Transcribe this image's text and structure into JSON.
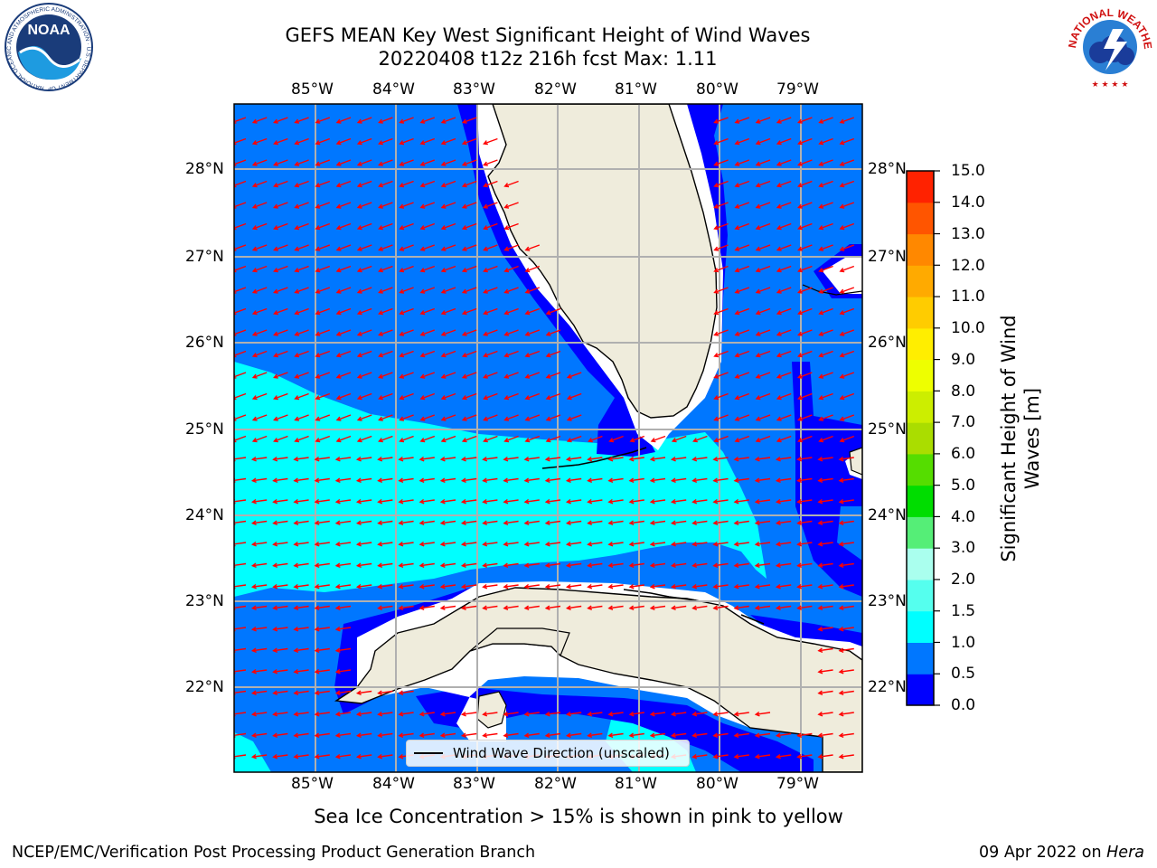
{
  "title": {
    "line1": "GEFS MEAN Key West Significant Height of Wind Waves",
    "line2": "20220408 t12z 216h fcst   Max: 1.11"
  },
  "logos": {
    "left": {
      "name": "noaa-logo",
      "text": "NOAA",
      "ring_text": "NATIONAL OCEANIC AND ATMOSPHERIC ADMINISTRATION · U.S. DEPARTMENT OF COMMERCE"
    },
    "right": {
      "name": "nws-logo",
      "ring_text": "NATIONAL WEATHER SERVICE"
    }
  },
  "map": {
    "lon_labels": [
      "85°W",
      "84°W",
      "83°W",
      "82°W",
      "81°W",
      "80°W",
      "79°W"
    ],
    "lat_labels": [
      "28°N",
      "27°N",
      "26°N",
      "25°N",
      "24°N",
      "23°N",
      "22°N"
    ],
    "extent": {
      "lon": [
        -86.0,
        -78.25
      ],
      "lat": [
        21.0,
        28.75
      ]
    },
    "colors": {
      "land": "#efecdc",
      "coast": "#000000",
      "grid": "#b0b0b0",
      "arrow": "#ff0000",
      "no_data": "#ffffff"
    }
  },
  "legend": {
    "label": "Wind Wave Direction (unscaled)"
  },
  "colorbar": {
    "label": "Significant Height of Wind Waves [m]",
    "label_line1": "Significant Height of Wind",
    "label_line2": "Waves [m]",
    "ticks": [
      "15.0",
      "14.0",
      "13.0",
      "12.0",
      "11.0",
      "10.0",
      "9.0",
      "8.0",
      "7.0",
      "6.0",
      "5.0",
      "4.0",
      "3.0",
      "2.0",
      "1.5",
      "1.0",
      "0.5",
      "0.0"
    ],
    "levels": [
      0.0,
      0.5,
      1.0,
      1.5,
      2.0,
      3.0,
      4.0,
      5.0,
      6.0,
      7.0,
      8.0,
      9.0,
      10.0,
      11.0,
      12.0,
      13.0,
      14.0,
      15.0
    ],
    "colors": [
      "#0000ff",
      "#0077ff",
      "#00ffff",
      "#55ffee",
      "#aaffee",
      "#55ee77",
      "#00dd00",
      "#55dd00",
      "#aadd00",
      "#ccee00",
      "#eeff00",
      "#ffee00",
      "#ffcc00",
      "#ffaa00",
      "#ff8800",
      "#ff5500",
      "#ff2200"
    ]
  },
  "notes": {
    "ice": "Sea Ice Concentration > 15% is shown in pink to yellow",
    "footer_left": "NCEP/EMC/Verification Post Processing Product Generation Branch",
    "footer_right_prefix": "09 Apr 2022 on ",
    "footer_right_host": "Hera"
  },
  "chart_data": {
    "type": "map",
    "variable": "Significant Height of Wind Waves",
    "units": "m",
    "max": 1.11,
    "dominant_wave_direction": "toward west / west-northwest (easterly flow)",
    "zones": [
      {
        "value_range": [
          0.0,
          0.5
        ],
        "color": "#0000ff",
        "where": "near coasts (West Florida shelf edge, Florida Keys, north Cuba coast, Bahamas edges)"
      },
      {
        "value_range": [
          0.5,
          1.0
        ],
        "color": "#0077ff",
        "where": "most open water"
      },
      {
        "value_range": [
          1.0,
          1.5
        ],
        "color": "#00ffff",
        "where": "Florida Straits band from 86°W to ~79.5°W, ~23.5–25.7°N"
      }
    ]
  }
}
